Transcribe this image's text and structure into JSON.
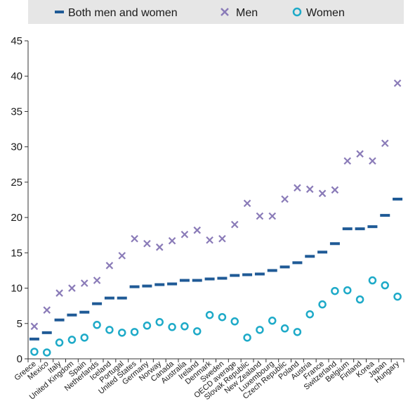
{
  "chart_data": {
    "type": "scatter",
    "categories": [
      "Greece",
      "Mexico",
      "Italy",
      "United Kingdom",
      "Spain",
      "Netherlands",
      "Iceland",
      "Portugal",
      "United States",
      "Germany",
      "Norway",
      "Canada",
      "Australia",
      "Ireland",
      "Denmark",
      "Sweden",
      "OECD average",
      "Slovak Republic",
      "New Zealand",
      "Luxembourg",
      "Czech Republic",
      "Poland",
      "Austria",
      "France",
      "Switzerland",
      "Belgium",
      "Finland",
      "Korea",
      "Japan",
      "Hungary"
    ],
    "series": [
      {
        "name": "Both men and women",
        "marker": "dash",
        "color": "#1f5a96",
        "values": [
          2.8,
          3.7,
          5.5,
          6.2,
          6.6,
          7.8,
          8.6,
          8.6,
          10.2,
          10.3,
          10.5,
          10.6,
          11.1,
          11.1,
          11.3,
          11.4,
          11.8,
          11.9,
          12.0,
          12.5,
          13.0,
          13.6,
          14.5,
          15.1,
          16.3,
          18.4,
          18.4,
          18.7,
          20.3,
          22.6
        ]
      },
      {
        "name": "Men",
        "marker": "cross",
        "color": "#8a7bb8",
        "values": [
          4.6,
          6.9,
          9.3,
          10.0,
          10.7,
          11.1,
          13.2,
          14.6,
          17.0,
          16.3,
          15.8,
          16.7,
          17.6,
          18.2,
          16.8,
          17.0,
          19.0,
          22.0,
          20.2,
          20.2,
          22.6,
          24.2,
          24.0,
          23.4,
          23.9,
          28.0,
          29.0,
          28.0,
          30.5,
          39.0
        ]
      },
      {
        "name": "Women",
        "marker": "circle",
        "color": "#1eaac8",
        "values": [
          1.0,
          0.9,
          2.3,
          2.7,
          3.0,
          4.8,
          4.1,
          3.7,
          3.8,
          4.7,
          5.2,
          4.5,
          4.6,
          3.9,
          6.2,
          5.9,
          5.3,
          3.0,
          4.1,
          5.4,
          4.3,
          3.8,
          6.3,
          7.7,
          9.6,
          9.7,
          8.4,
          11.1,
          10.4,
          8.8
        ]
      }
    ],
    "ylim": [
      0,
      45
    ],
    "yticks": [
      0,
      5,
      10,
      15,
      20,
      25,
      30,
      35,
      40,
      45
    ],
    "grid": false,
    "legend_position": "top"
  },
  "legend": {
    "both_label": "Both men and women",
    "men_label": "Men",
    "women_label": "Women"
  }
}
